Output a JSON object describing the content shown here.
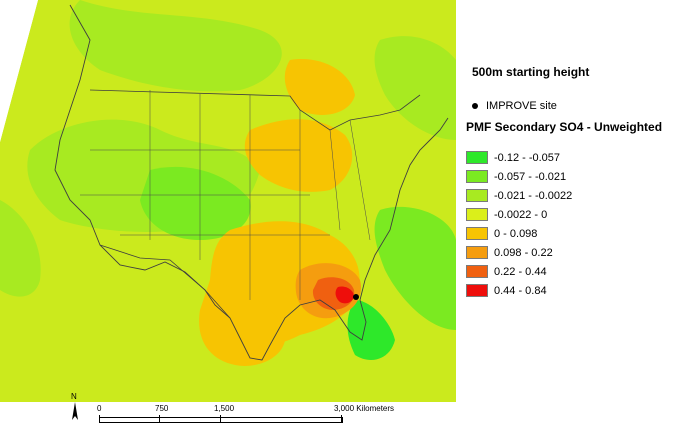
{
  "map": {
    "site_marker_name": "IMPROVE site",
    "colors": {
      "background": "#ffffff",
      "land_default": "#cbea1d",
      "boundary": "#3f3f3f"
    }
  },
  "legend": {
    "starting_height": "500m starting height",
    "site_label": "IMPROVE site",
    "title": "PMF Secondary SO4 - Unweighted",
    "classes": [
      {
        "label": "-0.12 - -0.057",
        "color": "#2ee82a"
      },
      {
        "label": "-0.057 - -0.021",
        "color": "#7bea21"
      },
      {
        "label": "-0.021 - -0.0022",
        "color": "#a8ea21"
      },
      {
        "label": "-0.0022 - 0",
        "color": "#dbef1a"
      },
      {
        "label": "0 - 0.098",
        "color": "#f7c402"
      },
      {
        "label": "0.098 - 0.22",
        "color": "#f59d0f"
      },
      {
        "label": "0.22 - 0.44",
        "color": "#f06010"
      },
      {
        "label": "0.44 - 0.84",
        "color": "#ee0e0b"
      }
    ]
  },
  "scalebar": {
    "north_letter": "N",
    "labels": [
      "0",
      "750",
      "1,500",
      "3,000 Kilometers"
    ]
  }
}
